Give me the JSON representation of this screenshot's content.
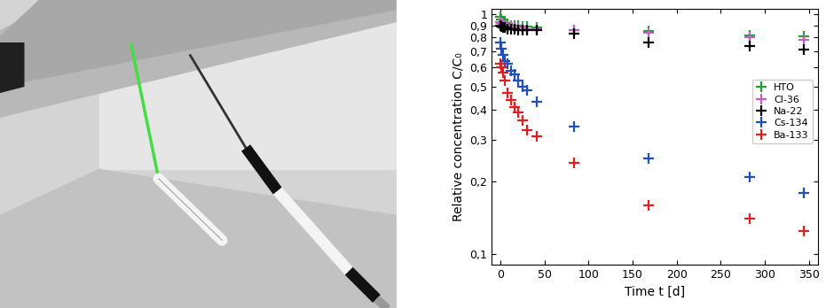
{
  "chart_data": {
    "type": "scatter",
    "x_label": "Time t [d]",
    "y_label": "Relative concentration C/C₀",
    "log": "y",
    "grid": false,
    "legend": "center right",
    "marker": "+",
    "xlim": [
      -10,
      360
    ],
    "xticks": [
      0,
      50,
      100,
      150,
      200,
      250,
      300,
      350
    ],
    "ylim": [
      0.09,
      1.05
    ],
    "yticks": [
      {
        "value": 0.1,
        "label": "0,1"
      },
      {
        "value": 0.2,
        "label": "0,2"
      },
      {
        "value": 0.3,
        "label": "0,3"
      },
      {
        "value": 0.4,
        "label": "0,4"
      },
      {
        "value": 0.5,
        "label": "0,5"
      },
      {
        "value": 0.6,
        "label": "0,6"
      },
      {
        "value": 0.7,
        "label": "0,7"
      },
      {
        "value": 0.8,
        "label": "0,8"
      },
      {
        "value": 0.9,
        "label": "0,9"
      },
      1
    ],
    "x": [
      0,
      1,
      3,
      5,
      8,
      12,
      16,
      20,
      25,
      30,
      41,
      84,
      168,
      283,
      344
    ],
    "series": [
      {
        "name": "HTO",
        "color": "#22a030",
        "values": [
          0.98,
          0.95,
          0.93,
          0.92,
          0.91,
          0.9,
          0.9,
          0.9,
          0.89,
          0.89,
          0.88,
          0.86,
          0.85,
          0.82,
          0.81
        ]
      },
      {
        "name": "Cl-36",
        "color": "#c060c0",
        "values": [
          0.93,
          0.92,
          0.91,
          0.9,
          0.89,
          0.89,
          0.88,
          0.88,
          0.88,
          0.87,
          0.87,
          0.86,
          0.84,
          0.8,
          0.78
        ]
      },
      {
        "name": "Na-22",
        "color": "#000000",
        "values": [
          0.9,
          0.89,
          0.88,
          0.88,
          0.87,
          0.87,
          0.87,
          0.86,
          0.86,
          0.86,
          0.86,
          0.83,
          0.76,
          0.74,
          0.71
        ]
      },
      {
        "name": "Cs-134",
        "color": "#1f4fbf",
        "values": [
          0.76,
          0.72,
          0.68,
          0.64,
          0.62,
          0.58,
          0.56,
          0.53,
          0.5,
          0.48,
          0.43,
          0.34,
          0.25,
          0.21,
          0.18
        ]
      },
      {
        "name": "Ba-133",
        "color": "#e02020",
        "values": [
          0.62,
          0.6,
          0.57,
          0.53,
          0.47,
          0.44,
          0.41,
          0.39,
          0.36,
          0.33,
          0.31,
          0.24,
          0.16,
          0.14,
          0.125
        ]
      }
    ]
  }
}
